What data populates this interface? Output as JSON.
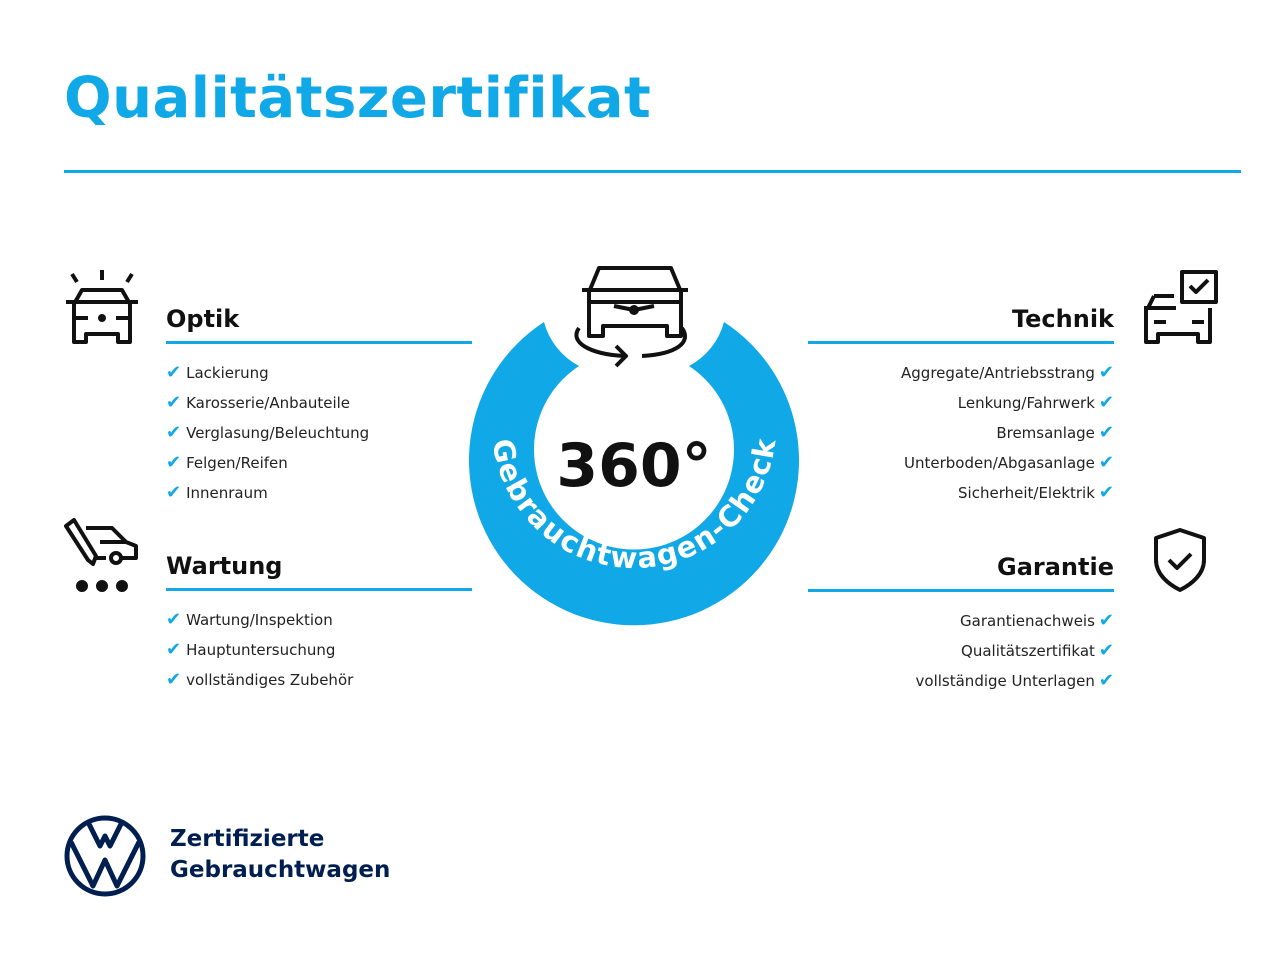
{
  "title": "Qualitätszertifikat",
  "badge": {
    "number": "360°",
    "ring_text": "Gebrauchtwagen-Check",
    "ring_color": "#10a8e6"
  },
  "colors": {
    "accent": "#10a8e6",
    "brand_navy": "#001e50"
  },
  "sections": {
    "optik": {
      "title": "Optik",
      "icon": "car-lights-icon",
      "items": [
        "Lackierung",
        "Karosserie/Anbauteile",
        "Verglasung/Beleuchtung",
        "Felgen/Reifen",
        "Innenraum"
      ]
    },
    "wartung": {
      "title": "Wartung",
      "icon": "service-van-icon",
      "items": [
        "Wartung/Inspektion",
        "Hauptuntersuchung",
        "vollständiges Zubehör"
      ]
    },
    "technik": {
      "title": "Technik",
      "icon": "car-checklist-icon",
      "items": [
        "Aggregate/Antriebsstrang",
        "Lenkung/Fahrwerk",
        "Bremsanlage",
        "Unterboden/Abgasanlage",
        "Sicherheit/Elektrik"
      ]
    },
    "garantie": {
      "title": "Garantie",
      "icon": "shield-check-icon",
      "items": [
        "Garantienachweis",
        "Qualitätszertifikat",
        "vollständige Unterlagen"
      ]
    }
  },
  "check_mark": "✔",
  "footer": {
    "line1": "Zertifizierte",
    "line2": "Gebrauchtwagen",
    "logo": "VW"
  }
}
